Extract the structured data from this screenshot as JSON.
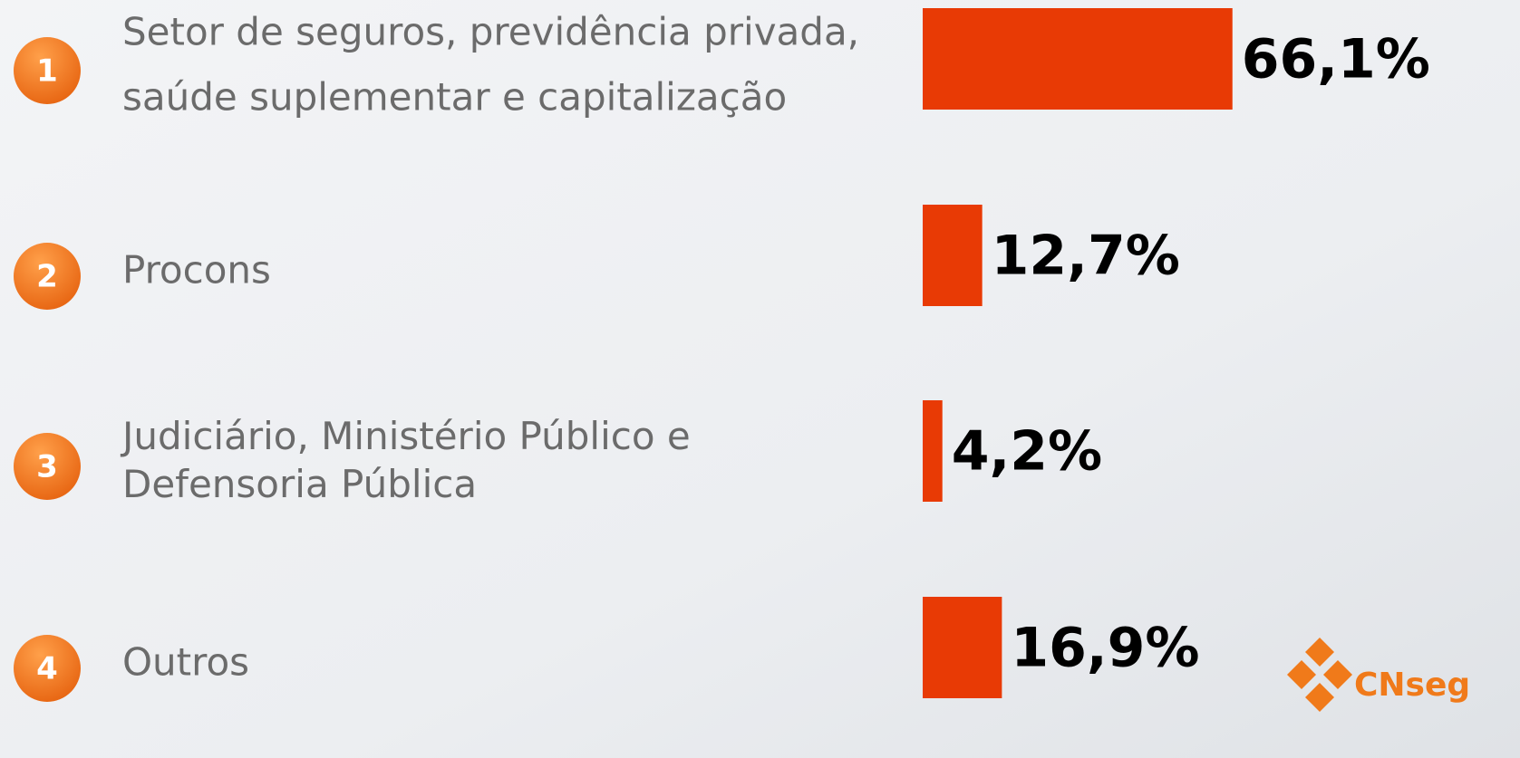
{
  "chart_data": {
    "type": "bar",
    "orientation": "horizontal",
    "markers": [
      "1",
      "2",
      "3",
      "4"
    ],
    "categories": [
      [
        "Setor de seguros, previdência privada,",
        "saúde suplementar e capitalização"
      ],
      [
        "Procons"
      ],
      [
        "Judiciário, Ministério Público e",
        "Defensoria Pública"
      ],
      [
        "Outros"
      ]
    ],
    "values": [
      66.1,
      12.7,
      4.2,
      16.9
    ],
    "value_labels": [
      "66,1%",
      "12,7%",
      "4,2%",
      "16,9%"
    ],
    "color": "#e83a05",
    "xlim": [
      0,
      100
    ],
    "logo": "CNseg"
  }
}
